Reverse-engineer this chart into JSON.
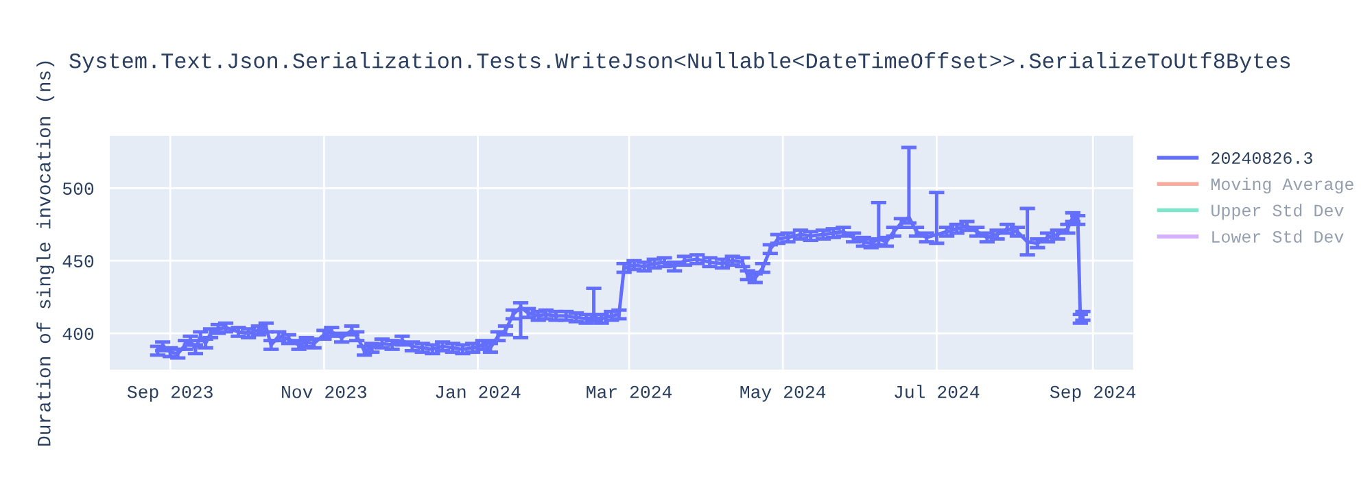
{
  "chart_data": {
    "type": "line",
    "title": "System.Text.Json.Serialization.Tests.WriteJson<Nullable<DateTimeOffset>>.SerializeToUtf8Bytes",
    "ylabel": "Duration of single invocation (ns)",
    "x": [
      "2023-08-27",
      "2023-08-29",
      "2023-09-01",
      "2023-09-04",
      "2023-09-07",
      "2023-09-09",
      "2023-09-11",
      "2023-09-13",
      "2023-09-15",
      "2023-09-17",
      "2023-09-20",
      "2023-09-23",
      "2023-09-28",
      "2023-10-02",
      "2023-10-06",
      "2023-10-09",
      "2023-10-11",
      "2023-10-14",
      "2023-10-18",
      "2023-10-22",
      "2023-10-25",
      "2023-10-28",
      "2023-11-01",
      "2023-11-04",
      "2023-11-08",
      "2023-11-12",
      "2023-11-14",
      "2023-11-17",
      "2023-11-20",
      "2023-11-24",
      "2023-11-28",
      "2023-12-02",
      "2023-12-06",
      "2023-12-10",
      "2023-12-14",
      "2023-12-18",
      "2023-12-22",
      "2023-12-26",
      "2023-12-30",
      "2024-01-03",
      "2024-01-06",
      "2024-01-09",
      "2024-01-12",
      "2024-01-15",
      "2024-01-18",
      "2024-01-21",
      "2024-01-25",
      "2024-01-28",
      "2024-02-01",
      "2024-02-05",
      "2024-02-09",
      "2024-02-13",
      "2024-02-16",
      "2024-02-19",
      "2024-02-23",
      "2024-02-26",
      "2024-02-28",
      "2024-03-03",
      "2024-03-07",
      "2024-03-11",
      "2024-03-15",
      "2024-03-19",
      "2024-03-23",
      "2024-03-28",
      "2024-04-02",
      "2024-04-07",
      "2024-04-11",
      "2024-04-15",
      "2024-04-17",
      "2024-04-20",
      "2024-04-23",
      "2024-04-26",
      "2024-04-29",
      "2024-05-03",
      "2024-05-08",
      "2024-05-12",
      "2024-05-17",
      "2024-05-21",
      "2024-05-25",
      "2024-05-29",
      "2024-06-02",
      "2024-06-05",
      "2024-06-08",
      "2024-06-11",
      "2024-06-14",
      "2024-06-17",
      "2024-06-20",
      "2024-06-23",
      "2024-06-27",
      "2024-07-01",
      "2024-07-05",
      "2024-07-09",
      "2024-07-13",
      "2024-07-17",
      "2024-07-21",
      "2024-07-25",
      "2024-07-29",
      "2024-08-02",
      "2024-08-06",
      "2024-08-10",
      "2024-08-14",
      "2024-08-18",
      "2024-08-22",
      "2024-08-24",
      "2024-08-26",
      "2024-08-27",
      "2024-08-28"
    ],
    "series": [
      {
        "name": "20240826.3",
        "color": "#636efa",
        "values": [
          388,
          391,
          387,
          386,
          392,
          395,
          389,
          398,
          393,
          400,
          403,
          404,
          401,
          400,
          402,
          404,
          392,
          398,
          396,
          392,
          394,
          393,
          399,
          401,
          397,
          402,
          398,
          388,
          390,
          393,
          392,
          395,
          391,
          390,
          389,
          391,
          390,
          389,
          390,
          392,
          390,
          398,
          402,
          413,
          418,
          414,
          412,
          413,
          412,
          412,
          411,
          410,
          411,
          410,
          412,
          413,
          445,
          447,
          446,
          448,
          449,
          446,
          450,
          451,
          449,
          448,
          450,
          449,
          440,
          438,
          445,
          458,
          465,
          466,
          468,
          467,
          468,
          469,
          470,
          466,
          463,
          462,
          465,
          463,
          470,
          476,
          480,
          470,
          466,
          468,
          470,
          472,
          474,
          470,
          466,
          468,
          472,
          470,
          463,
          462,
          466,
          468,
          472,
          480,
          478,
          410,
          412
        ],
        "errors": [
          3,
          3,
          3,
          3,
          3,
          3,
          3,
          3,
          3,
          3,
          3,
          3,
          3,
          3,
          3,
          3,
          3,
          3,
          3,
          3,
          3,
          3,
          3,
          3,
          3,
          3,
          3,
          3,
          3,
          3,
          3,
          3,
          3,
          3,
          3,
          3,
          3,
          3,
          3,
          3,
          3,
          3,
          3,
          3,
          [
            397,
            421
          ],
          3,
          3,
          3,
          3,
          3,
          3,
          3,
          [
            409,
            431
          ],
          3,
          3,
          3,
          3,
          3,
          3,
          3,
          3,
          3,
          3,
          3,
          3,
          3,
          3,
          3,
          3,
          3,
          3,
          3,
          3,
          3,
          3,
          3,
          3,
          3,
          3,
          3,
          3,
          3,
          [
            461,
            490
          ],
          3,
          3,
          3,
          [
            476,
            528
          ],
          3,
          3,
          [
            462,
            497
          ],
          3,
          3,
          3,
          3,
          3,
          3,
          3,
          3,
          [
            454,
            486
          ],
          3,
          3,
          3,
          3,
          3,
          3,
          3,
          3
        ]
      },
      {
        "name": "Moving Average",
        "color": "#ef553b",
        "values": [
          null,
          null,
          null,
          null,
          null,
          null,
          null,
          null,
          null,
          null,
          null,
          null,
          null,
          null,
          null,
          null,
          null,
          null,
          null,
          null,
          null,
          null,
          null,
          null,
          null,
          null,
          null,
          null,
          null,
          null,
          null,
          null,
          null,
          null,
          null,
          null,
          null,
          null,
          null,
          null,
          null,
          null,
          null,
          null,
          null,
          null,
          null,
          null,
          null,
          null,
          null,
          null,
          null,
          null,
          null,
          null,
          null,
          null,
          null,
          null,
          null,
          null,
          null,
          null,
          null,
          null,
          null,
          null,
          null,
          null,
          null,
          null,
          null,
          null,
          null,
          null,
          null,
          null,
          null,
          null,
          null,
          null,
          null,
          null,
          null,
          null,
          null,
          null,
          null,
          null,
          null,
          null,
          null,
          null,
          null,
          null,
          null,
          null,
          null,
          null,
          null,
          null,
          null,
          null,
          null,
          null,
          null
        ]
      },
      {
        "name": "Upper Std Dev",
        "color": "#00cc96",
        "values": [
          null,
          null,
          null,
          null,
          null,
          null,
          null,
          null,
          null,
          null,
          null,
          null,
          null,
          null,
          null,
          null,
          null,
          null,
          null,
          null,
          null,
          null,
          null,
          null,
          null,
          null,
          null,
          null,
          null,
          null,
          null,
          null,
          null,
          null,
          null,
          null,
          null,
          null,
          null,
          null,
          null,
          null,
          null,
          null,
          null,
          null,
          null,
          null,
          null,
          null,
          null,
          null,
          null,
          null,
          null,
          null,
          null,
          null,
          null,
          null,
          null,
          null,
          null,
          null,
          null,
          null,
          null,
          null,
          null,
          null,
          null,
          null,
          null,
          null,
          null,
          null,
          null,
          null,
          null,
          null,
          null,
          null,
          null,
          null,
          null,
          null,
          null,
          null,
          null,
          null,
          null,
          null,
          null,
          null,
          null,
          null,
          null,
          null,
          null,
          null,
          null,
          null,
          null,
          null,
          null,
          null,
          null
        ]
      },
      {
        "name": "Lower Std Dev",
        "color": "#ab63fa",
        "values": [
          null,
          null,
          null,
          null,
          null,
          null,
          null,
          null,
          null,
          null,
          null,
          null,
          null,
          null,
          null,
          null,
          null,
          null,
          null,
          null,
          null,
          null,
          null,
          null,
          null,
          null,
          null,
          null,
          null,
          null,
          null,
          null,
          null,
          null,
          null,
          null,
          null,
          null,
          null,
          null,
          null,
          null,
          null,
          null,
          null,
          null,
          null,
          null,
          null,
          null,
          null,
          null,
          null,
          null,
          null,
          null,
          null,
          null,
          null,
          null,
          null,
          null,
          null,
          null,
          null,
          null,
          null,
          null,
          null,
          null,
          null,
          null,
          null,
          null,
          null,
          null,
          null,
          null,
          null,
          null,
          null,
          null,
          null,
          null,
          null,
          null,
          null,
          null,
          null,
          null,
          null,
          null,
          null,
          null,
          null,
          null,
          null,
          null,
          null,
          null,
          null,
          null,
          null,
          null,
          null,
          null,
          null
        ]
      }
    ],
    "ylim": [
      375,
      536
    ],
    "yticks": [
      400,
      450,
      500
    ],
    "xlim": [
      "2023-08-08",
      "2024-09-17"
    ],
    "xticks": [
      {
        "value": "2023-09-01",
        "label": "Sep 2023"
      },
      {
        "value": "2023-11-01",
        "label": "Nov 2023"
      },
      {
        "value": "2024-01-01",
        "label": "Jan 2024"
      },
      {
        "value": "2024-03-01",
        "label": "Mar 2024"
      },
      {
        "value": "2024-05-01",
        "label": "May 2024"
      },
      {
        "value": "2024-07-01",
        "label": "Jul 2024"
      },
      {
        "value": "2024-09-01",
        "label": "Sep 2024"
      }
    ],
    "grid": true,
    "legend": "right",
    "marker": "none",
    "line_style": "solid"
  }
}
